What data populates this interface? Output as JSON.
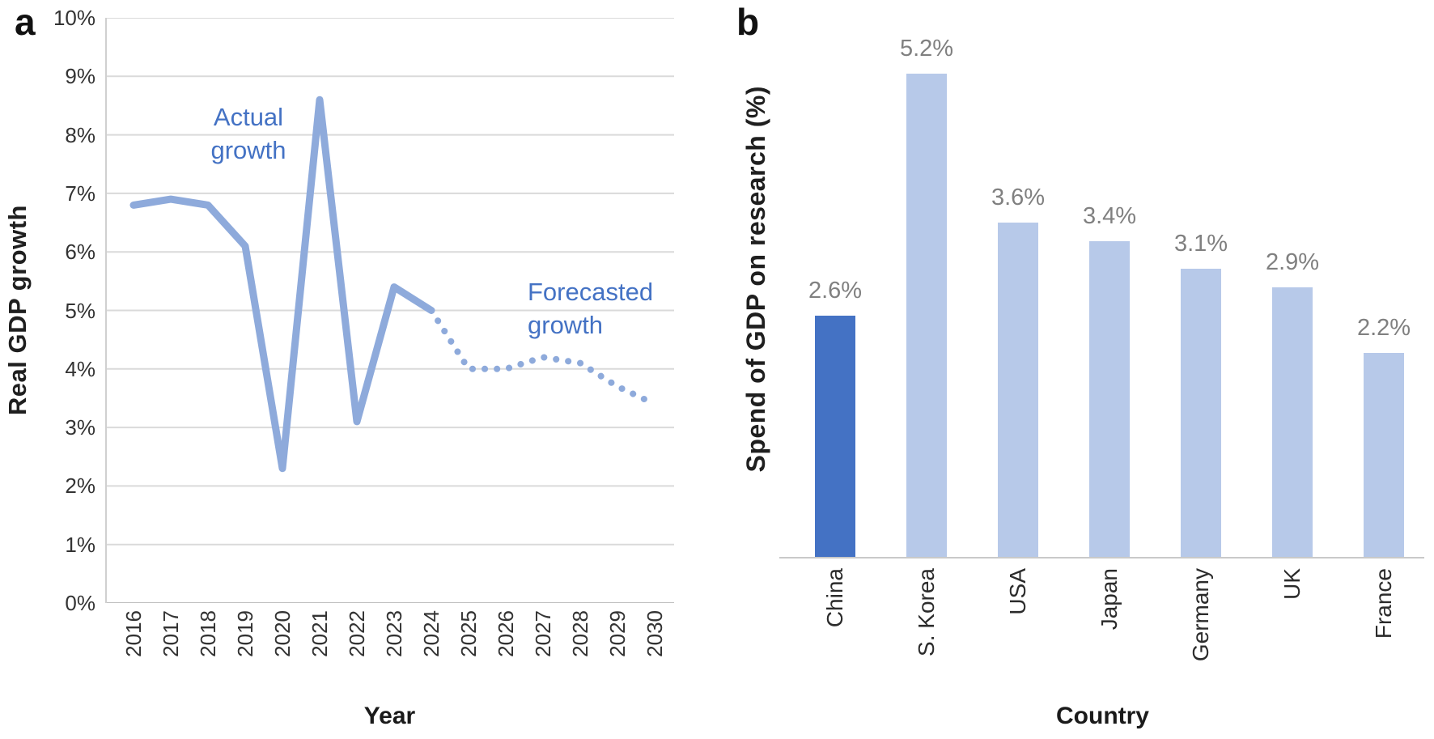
{
  "figure": {
    "panel_a_letter": "a",
    "panel_b_letter": "b"
  },
  "chart_data": [
    {
      "panel": "a",
      "type": "line",
      "title": "",
      "xlabel": "Year",
      "ylabel": "Real GDP growth",
      "x": [
        2016,
        2017,
        2018,
        2019,
        2020,
        2021,
        2022,
        2023,
        2024,
        2025,
        2026,
        2027,
        2028,
        2029,
        2030
      ],
      "series": [
        {
          "name": "Actual growth",
          "line_style": "solid",
          "x": [
            2016,
            2017,
            2018,
            2019,
            2020,
            2021,
            2022,
            2023,
            2024
          ],
          "values": [
            6.8,
            6.9,
            6.8,
            6.1,
            2.3,
            8.6,
            3.1,
            5.4,
            5.0
          ]
        },
        {
          "name": "Forecasted growth",
          "line_style": "dotted",
          "x": [
            2024,
            2025,
            2026,
            2027,
            2028,
            2029,
            2030
          ],
          "values": [
            5.0,
            4.0,
            4.0,
            4.2,
            4.1,
            3.7,
            3.4
          ]
        }
      ],
      "ylim": [
        0,
        10
      ],
      "yticks": [
        "0%",
        "1%",
        "2%",
        "3%",
        "4%",
        "5%",
        "6%",
        "7%",
        "8%",
        "9%",
        "10%"
      ],
      "grid": "horizontal",
      "legend_position": "none",
      "line_color": "#8EAADB",
      "annotation_color": "#4472C4",
      "gridline_color": "#dadada"
    },
    {
      "panel": "b",
      "type": "bar",
      "title": "",
      "xlabel": "Country",
      "ylabel": "Spend of GDP on research (%)",
      "categories": [
        "China",
        "S. Korea",
        "USA",
        "Japan",
        "Germany",
        "UK",
        "France"
      ],
      "values": [
        2.6,
        5.2,
        3.6,
        3.4,
        3.1,
        2.9,
        2.2
      ],
      "bar_labels": [
        "2.6%",
        "5.2%",
        "3.6%",
        "3.4%",
        "3.1%",
        "2.9%",
        "2.2%"
      ],
      "highlight_index": 0,
      "bar_color_highlight": "#4472C4",
      "bar_color_default": "#B7C9E9",
      "bar_label_color": "#808080",
      "ylim": [
        0,
        5.6
      ],
      "grid": "off",
      "legend_position": "none"
    }
  ]
}
